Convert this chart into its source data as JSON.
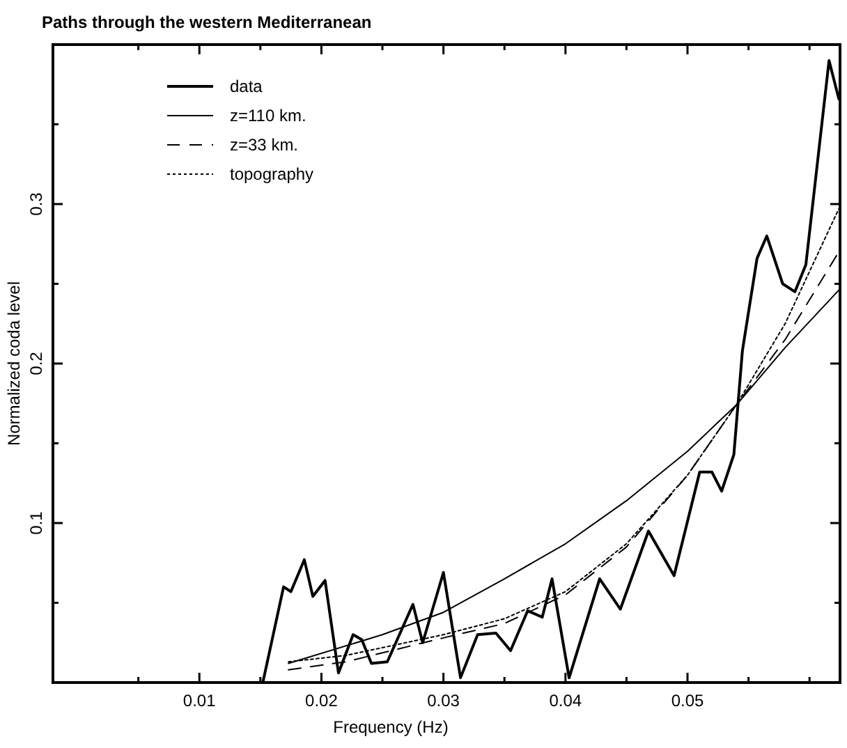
{
  "chart_data": {
    "type": "line",
    "title": "Paths through the western Mediterranean",
    "xlabel": "Frequency (Hz)",
    "ylabel": "Normalized coda level",
    "xlim": [
      -0.002,
      0.0625
    ],
    "ylim": [
      0,
      0.4
    ],
    "xticks": [
      {
        "value": 0.005,
        "label": null
      },
      0.01,
      {
        "value": 0.015,
        "label": null
      },
      0.02,
      {
        "value": 0.025,
        "label": null
      },
      0.03,
      {
        "value": 0.035,
        "label": null
      },
      0.04,
      {
        "value": 0.045,
        "label": null
      },
      0.05,
      {
        "value": 0.055,
        "label": null
      },
      {
        "value": 0.06,
        "label": null
      }
    ],
    "yticks": [
      {
        "value": 0.05,
        "label": null
      },
      0.1,
      {
        "value": 0.15,
        "label": null
      },
      0.2,
      {
        "value": 0.25,
        "label": null
      },
      0.3,
      {
        "value": 0.35,
        "label": null
      }
    ],
    "grid": false,
    "legend": "top left",
    "marker": "none",
    "series": [
      {
        "name": "data",
        "color": "#000000",
        "line_style": "solid",
        "x": [
          0.0152,
          0.0169,
          0.0175,
          0.0186,
          0.0193,
          0.0203,
          0.0214,
          0.0226,
          0.0233,
          0.0241,
          0.0254,
          0.0275,
          0.0283,
          0.03,
          0.0314,
          0.0328,
          0.0343,
          0.0355,
          0.0369,
          0.0381,
          0.0389,
          0.0403,
          0.0428,
          0.0445,
          0.0468,
          0.0489,
          0.051,
          0.052,
          0.0528,
          0.0538,
          0.0545,
          0.0557,
          0.0565,
          0.0578,
          0.0588,
          0.0597,
          0.0616,
          0.0624
        ],
        "values": [
          0,
          0.06,
          0.057,
          0.077,
          0.054,
          0.064,
          0.006,
          0.03,
          0.027,
          0.012,
          0.013,
          0.049,
          0.025,
          0.069,
          0.003,
          0.03,
          0.031,
          0.02,
          0.045,
          0.041,
          0.065,
          0.003,
          0.065,
          0.046,
          0.095,
          0.067,
          0.132,
          0.132,
          0.12,
          0.143,
          0.208,
          0.266,
          0.28,
          0.25,
          0.245,
          0.262,
          0.39,
          0.366
        ]
      },
      {
        "name": "z=110 km.",
        "color": "#000000",
        "line_style": "solid",
        "x": [
          0.0173,
          0.025,
          0.03,
          0.035,
          0.04,
          0.045,
          0.05,
          0.054,
          0.058,
          0.0624
        ],
        "values": [
          0.012,
          0.03,
          0.044,
          0.065,
          0.087,
          0.114,
          0.145,
          0.174,
          0.21,
          0.246
        ]
      },
      {
        "name": "z=33 km.",
        "color": "#000000",
        "line_style": "dashed",
        "x": [
          0.0173,
          0.022,
          0.03,
          0.035,
          0.04,
          0.045,
          0.05,
          0.054,
          0.058,
          0.0624
        ],
        "values": [
          0.008,
          0.013,
          0.028,
          0.037,
          0.055,
          0.085,
          0.13,
          0.174,
          0.215,
          0.27
        ]
      },
      {
        "name": "topography",
        "color": "#000000",
        "line_style": "dotted",
        "x": [
          0.0173,
          0.022,
          0.03,
          0.035,
          0.04,
          0.045,
          0.05,
          0.054,
          0.058,
          0.0624
        ],
        "values": [
          0.013,
          0.017,
          0.03,
          0.04,
          0.057,
          0.087,
          0.13,
          0.174,
          0.225,
          0.297
        ]
      }
    ]
  }
}
